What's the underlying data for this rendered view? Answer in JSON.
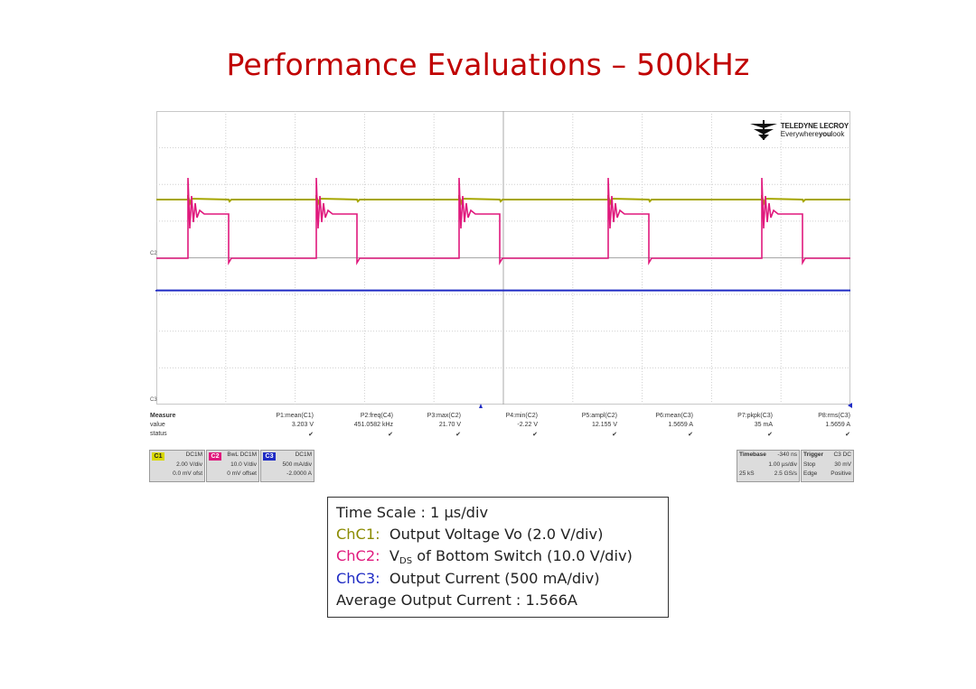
{
  "title": "Performance Evaluations – 500kHz",
  "scope": {
    "brand_name": "TELEDYNE LECROY",
    "brand_tagline_pre": "Everywhere",
    "brand_tagline_bold": "you",
    "brand_tagline_post": "look",
    "logo_icon": "teledyne-logo-icon",
    "marker_c2": "C2",
    "marker_c3": "C3",
    "trace_colors": {
      "c1": "#a6a600",
      "c2": "#e0197d",
      "c3": "#1f2bc4"
    },
    "measure": {
      "labels": [
        "Measure",
        "value",
        "status"
      ],
      "columns": [
        {
          "name": "P1:mean(C1)",
          "value": "3.203 V",
          "status": "✔"
        },
        {
          "name": "P2:freq(C4)",
          "value": "451.0582 kHz",
          "status": "✔"
        },
        {
          "name": "P3:max(C2)",
          "value": "21.70 V",
          "status": "✔"
        },
        {
          "name": "P4:min(C2)",
          "value": "-2.22 V",
          "status": "✔"
        },
        {
          "name": "P5:ampl(C2)",
          "value": "12.155 V",
          "status": "✔"
        },
        {
          "name": "P6:mean(C3)",
          "value": "1.5659 A",
          "status": "✔"
        },
        {
          "name": "P7:pkpk(C3)",
          "value": "35 mA",
          "status": "✔"
        },
        {
          "name": "P8:rms(C3)",
          "value": "1.5659 A",
          "status": "✔"
        }
      ]
    },
    "channels": [
      {
        "tag": "C1",
        "line1": "DC1M",
        "line2": "2.00 V/div",
        "line3": "0.0 mV ofst",
        "color": "#d8d800"
      },
      {
        "tag": "C2",
        "line1": "BwL DC1M",
        "line2": "10.0 V/div",
        "line3": "0 mV offset",
        "color": "#e0197d"
      },
      {
        "tag": "C3",
        "line1": "DC1M",
        "line2": "500 mA/div",
        "line3": "-2.0000 A",
        "color": "#1f2bc4"
      }
    ],
    "timebase": {
      "label": "Timebase",
      "delay": "-340 ns",
      "scale": "1.00 µs/div",
      "samples": "25 kS",
      "rate": "2.5 GS/s"
    },
    "trigger": {
      "label": "Trigger",
      "source": "C3 DC",
      "mode": "Stop",
      "level": "30 mV",
      "type": "Edge",
      "slope": "Positive"
    }
  },
  "legend": {
    "time_scale": "Time Scale : 1 µs/div",
    "ch1_label": "ChC1:",
    "ch1_text": "Output Voltage Vo (2.0 V/div)",
    "ch2_label": "ChC2:",
    "ch2_v": "V",
    "ch2_sub": "DS",
    "ch2_text": " of Bottom Switch (10.0 V/div)",
    "ch3_label": "ChC3:",
    "ch3_text": "Output Current (500 mA/div)",
    "avg": "Average Output Current : 1.566A"
  }
}
